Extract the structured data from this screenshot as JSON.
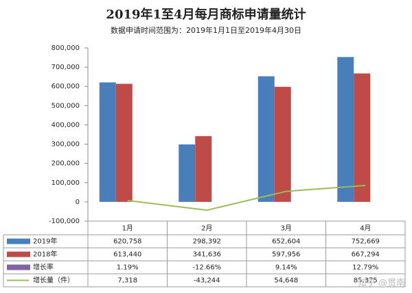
{
  "chart_data": {
    "type": "bar",
    "title": "2019年1至4月每月商标申请量统计",
    "subtitle": "数据申请时间范围为：2019年1月1日至2019年4月30日",
    "categories": [
      "1月",
      "2月",
      "3月",
      "4月"
    ],
    "series": [
      {
        "name": "2019年",
        "color": "#4a7ebb",
        "type": "bar",
        "values": [
          620758,
          298392,
          652604,
          752669
        ],
        "value_labels": [
          "620,758",
          "298,392",
          "652,604",
          "752,669"
        ]
      },
      {
        "name": "2018年",
        "color": "#be4b48",
        "type": "bar",
        "values": [
          613440,
          341636,
          597956,
          667294
        ],
        "value_labels": [
          "613,440",
          "341,636",
          "597,956",
          "667,294"
        ]
      },
      {
        "name": "增长率",
        "color": "#7f64a2",
        "type": "bar",
        "values": [
          1.19,
          -12.66,
          9.14,
          12.79
        ],
        "value_labels": [
          "1.19%",
          "-12.66%",
          "9.14%",
          "12.79%"
        ]
      },
      {
        "name": "增长量（件）",
        "color": "#9bbb59",
        "type": "line",
        "values": [
          7318,
          -43244,
          54648,
          85375
        ],
        "value_labels": [
          "7,318",
          "-43,244",
          "54,648",
          "85,375"
        ]
      }
    ],
    "ylim": [
      -100000,
      800000
    ],
    "yticks": [
      {
        "value": -100000,
        "label": "-100,000"
      },
      0,
      {
        "value": 100000,
        "label": "100,000"
      },
      {
        "value": 200000,
        "label": "200,000"
      },
      {
        "value": 300000,
        "label": "300,000"
      },
      {
        "value": 400000,
        "label": "400,000"
      },
      {
        "value": 500000,
        "label": "500,000"
      },
      {
        "value": 600000,
        "label": "600,000"
      },
      {
        "value": 700000,
        "label": "700,000"
      },
      {
        "value": 800000,
        "label": "800,000"
      }
    ],
    "grid": false,
    "watermark": "知乎 @贯南"
  }
}
